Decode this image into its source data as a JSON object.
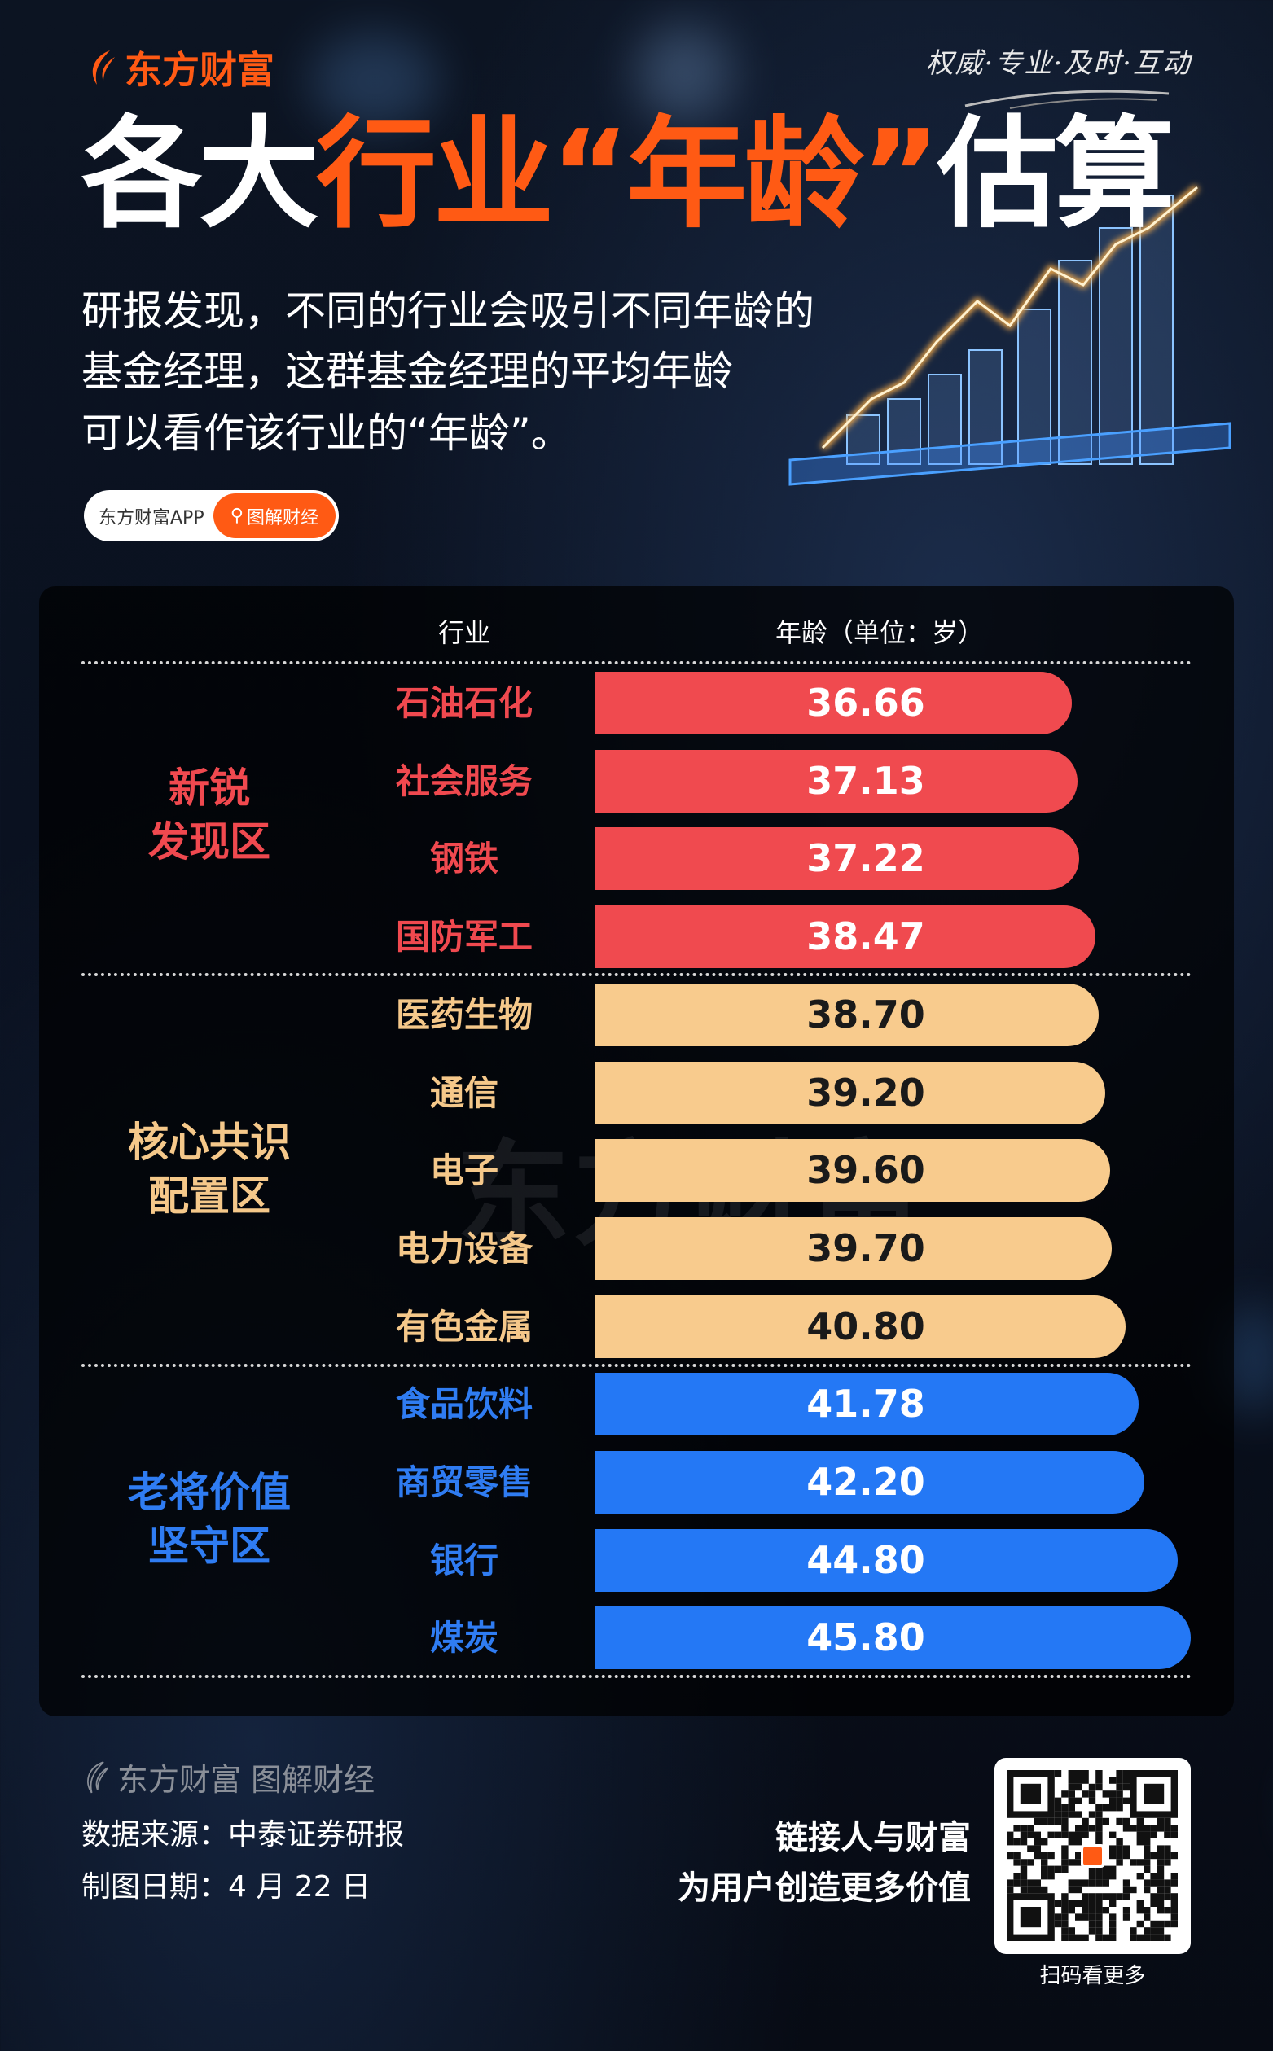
{
  "brand": {
    "logo_text": "东方财富",
    "slogan": "权威·专业·及时·互动"
  },
  "title": {
    "part1": "各大",
    "part2": "行业“年龄”",
    "part3": "估算"
  },
  "intro": [
    "研报发现，不同的行业会吸引不同年龄的",
    "基金经理，这群基金经理的平均年龄",
    "可以看作该行业的“年龄”。"
  ],
  "pill": {
    "app": "东方财富APP",
    "tag": "图解财经"
  },
  "table": {
    "headers": [
      "行业",
      "年龄（单位：岁）"
    ],
    "watermark": "东方财富",
    "groups": [
      {
        "label_line1": "新锐",
        "label_line2": "发现区",
        "color": "#f04a4f",
        "label_color": "#f0494f",
        "value_text_color": "#ffffff"
      },
      {
        "label_line1": "核心共识",
        "label_line2": "配置区",
        "color": "#f8cb8d",
        "label_color": "#f5c88a",
        "value_text_color": "#1a1a1a"
      },
      {
        "label_line1": "老将价值",
        "label_line2": "坚守区",
        "color": "#2478f5",
        "label_color": "#2f7cf2",
        "value_text_color": "#ffffff"
      }
    ],
    "rows": [
      {
        "industry": "石油石化",
        "age": "36.66",
        "group": 0
      },
      {
        "industry": "社会服务",
        "age": "37.13",
        "group": 0
      },
      {
        "industry": "钢铁",
        "age": "37.22",
        "group": 0
      },
      {
        "industry": "国防军工",
        "age": "38.47",
        "group": 0
      },
      {
        "industry": "医药生物",
        "age": "38.70",
        "group": 1
      },
      {
        "industry": "通信",
        "age": "39.20",
        "group": 1
      },
      {
        "industry": "电子",
        "age": "39.60",
        "group": 1
      },
      {
        "industry": "电力设备",
        "age": "39.70",
        "group": 1
      },
      {
        "industry": "有色金属",
        "age": "40.80",
        "group": 1
      },
      {
        "industry": "食品饮料",
        "age": "41.78",
        "group": 2
      },
      {
        "industry": "商贸零售",
        "age": "42.20",
        "group": 2
      },
      {
        "industry": "银行",
        "age": "44.80",
        "group": 2
      },
      {
        "industry": "煤炭",
        "age": "45.80",
        "group": 2
      }
    ]
  },
  "footer": {
    "brand": "东方财富 图解财经",
    "source": "数据来源：中泰证券研报",
    "date": "制图日期：4 月 22 日",
    "slogan1": "链接人与财富",
    "slogan2": "为用户创造更多价值",
    "qr_caption": "扫码看更多"
  },
  "colors": {
    "brand": "#ff5a14"
  }
}
